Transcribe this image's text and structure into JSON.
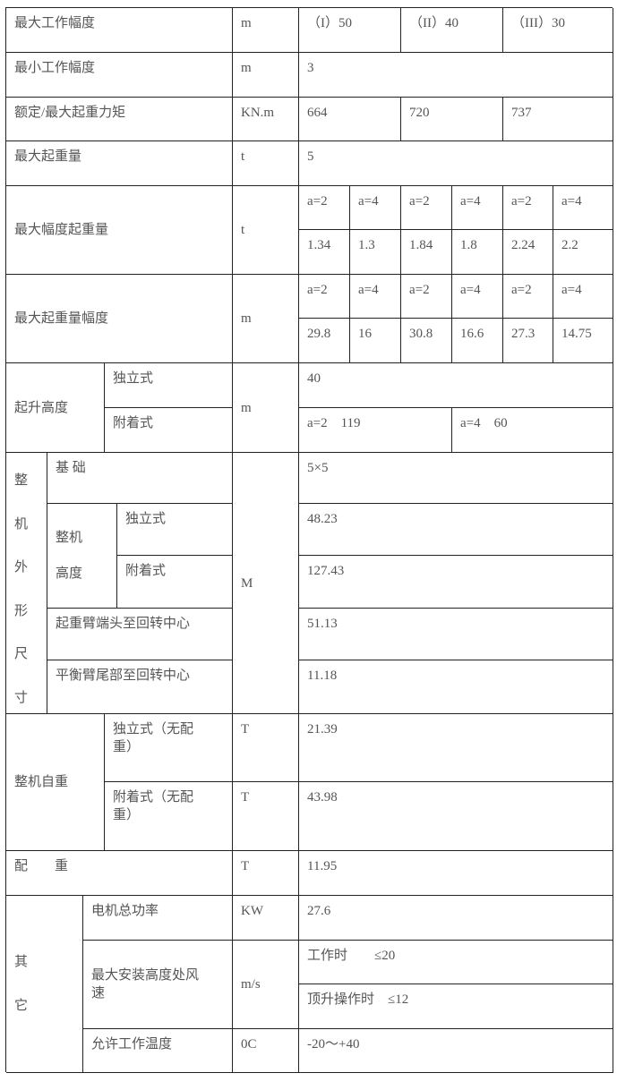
{
  "rows": {
    "max_radius": {
      "label": "最大工作幅度",
      "unit": "m",
      "values": [
        "（I）50",
        "（II）40",
        "（III）30"
      ]
    },
    "min_radius": {
      "label": "最小工作幅度",
      "unit": "m",
      "value": "3"
    },
    "moment": {
      "label": "额定/最大起重力矩",
      "unit": "KN.m",
      "values": [
        "664",
        "720",
        "737"
      ]
    },
    "max_load": {
      "label": "最大起重量",
      "unit": "t",
      "value": "5"
    },
    "tip_load": {
      "label": "最大幅度起重量",
      "unit": "t",
      "headers": [
        "a=2",
        "a=4",
        "a=2",
        "a=4",
        "a=2",
        "a=4"
      ],
      "values": [
        "1.34",
        "1.3",
        "1.84",
        "1.8",
        "2.24",
        "2.2"
      ]
    },
    "max_load_radius": {
      "label": "最大起重量幅度",
      "unit": "m",
      "headers": [
        "a=2",
        "a=4",
        "a=2",
        "a=4",
        "a=2",
        "a=4"
      ],
      "values": [
        "29.8",
        "16",
        "30.8",
        "16.6",
        "27.3",
        "14.75"
      ]
    },
    "lift_height": {
      "label": "起升高度",
      "unit": "m",
      "freestanding": {
        "label": "独立式",
        "value": "40"
      },
      "attached": {
        "label": "附着式",
        "values": [
          "a=2　119",
          "a=4　60"
        ]
      }
    },
    "dimensions": {
      "label": [
        "整",
        "机",
        "外",
        "形",
        "尺",
        "寸"
      ],
      "unit": "M",
      "base": {
        "label": "基 础",
        "value": "5×5"
      },
      "height_label": "整机\n\n高度",
      "height_free": {
        "label": "独立式",
        "value": "48.23"
      },
      "height_attached": {
        "label": "附着式",
        "value": "127.43"
      },
      "jib": {
        "label": "起重臂端头至回转中心",
        "value": "51.13"
      },
      "counter_jib": {
        "label": "平衡臂尾部至回转中心",
        "value": "11.18"
      }
    },
    "self_weight": {
      "label": "整机自重",
      "free": {
        "label": "独立式（无配\n重）",
        "unit": "T",
        "value": "21.39"
      },
      "attached": {
        "label": "附着式（无配\n重）",
        "unit": "T",
        "value": "43.98"
      }
    },
    "counterweight": {
      "label": "配　　重",
      "unit": "T",
      "value": "11.95"
    },
    "other": {
      "label": [
        "其",
        "它"
      ],
      "power": {
        "label": "电机总功率",
        "unit": "KW",
        "value": "27.6"
      },
      "wind": {
        "label": "最大安装高度处风\n速",
        "unit": "m/s",
        "values": [
          "工作时　　≤20",
          "顶升操作时　≤12"
        ]
      },
      "temp": {
        "label": "允许工作温度",
        "unit": "0C",
        "value": "-20～+40"
      }
    }
  }
}
